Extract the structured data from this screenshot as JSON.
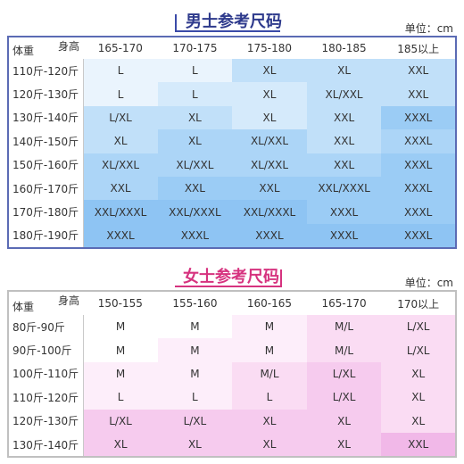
{
  "men": {
    "title": "男士参考尺码",
    "unit": "单位：cm",
    "height_label": "身高",
    "weight_label": "体重",
    "heights": [
      "165-170",
      "170-175",
      "175-180",
      "180-185",
      "185以上"
    ],
    "rows": [
      {
        "weight": "110斤-120斤",
        "sizes": [
          "L",
          "L",
          "XL",
          "XL",
          "XXL"
        ]
      },
      {
        "weight": "120斤-130斤",
        "sizes": [
          "L",
          "L",
          "XL",
          "XL/XXL",
          "XXL"
        ]
      },
      {
        "weight": "130斤-140斤",
        "sizes": [
          "L/XL",
          "XL",
          "XL",
          "XXL",
          "XXXL"
        ]
      },
      {
        "weight": "140斤-150斤",
        "sizes": [
          "XL",
          "XL",
          "XL/XXL",
          "XXL",
          "XXXL"
        ]
      },
      {
        "weight": "150斤-160斤",
        "sizes": [
          "XL/XXL",
          "XL/XXL",
          "XL/XXL",
          "XXL",
          "XXXL"
        ]
      },
      {
        "weight": "160斤-170斤",
        "sizes": [
          "XXL",
          "XXL",
          "XXL",
          "XXL/XXXL",
          "XXXL"
        ]
      },
      {
        "weight": "170斤-180斤",
        "sizes": [
          "XXL/XXXL",
          "XXL/XXXL",
          "XXL/XXXL",
          "XXXL",
          "XXXL"
        ]
      },
      {
        "weight": "180斤-190斤",
        "sizes": [
          "XXXL",
          "XXXL",
          "XXXL",
          "XXXL",
          "XXXL"
        ]
      }
    ]
  },
  "women": {
    "title": "女士参考尺码",
    "unit": "单位：cm",
    "height_label": "身高",
    "weight_label": "体重",
    "heights": [
      "150-155",
      "155-160",
      "160-165",
      "165-170",
      "170以上"
    ],
    "rows": [
      {
        "weight": "80斤-90斤",
        "sizes": [
          "M",
          "M",
          "M",
          "M/L",
          "L/XL"
        ]
      },
      {
        "weight": "90斤-100斤",
        "sizes": [
          "M",
          "M",
          "M",
          "M/L",
          "L/XL"
        ]
      },
      {
        "weight": "100斤-110斤",
        "sizes": [
          "M",
          "M",
          "M/L",
          "L/XL",
          "XL"
        ]
      },
      {
        "weight": "110斤-120斤",
        "sizes": [
          "L",
          "L",
          "L",
          "L/XL",
          "XL"
        ]
      },
      {
        "weight": "120斤-130斤",
        "sizes": [
          "L/XL",
          "L/XL",
          "XL",
          "XL",
          "XL"
        ]
      },
      {
        "weight": "130斤-140斤",
        "sizes": [
          "XL",
          "XL",
          "XL",
          "XL",
          "XXL"
        ]
      }
    ]
  },
  "colors": {
    "men_title": "#2e3a8c",
    "women_title": "#d6337f",
    "men_cell_light": "#eaf4fd",
    "men_cell_dark": "#8ec4f3",
    "women_cell_light": "#fdeefa",
    "women_cell_dark": "#f1b8e8"
  }
}
